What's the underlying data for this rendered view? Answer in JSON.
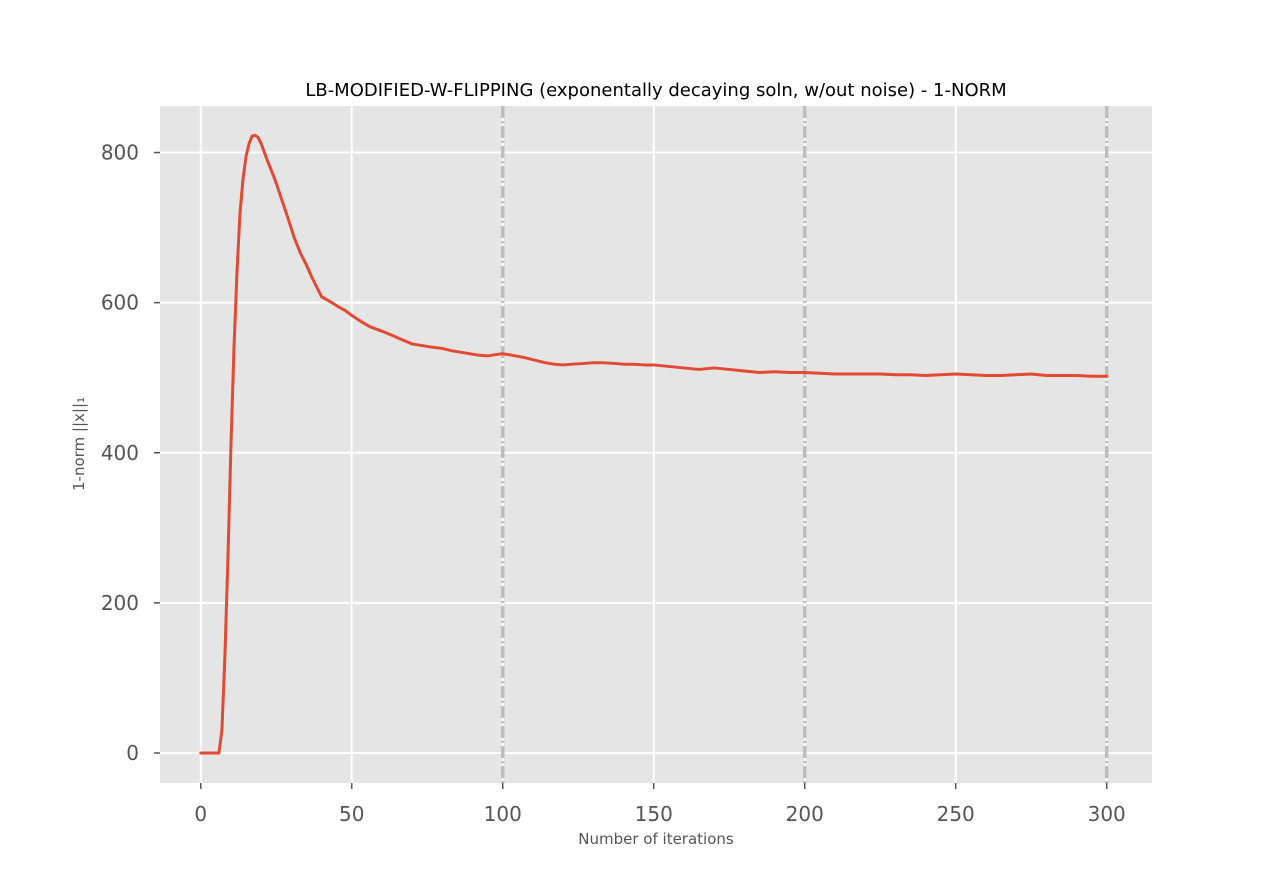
{
  "chart_data": {
    "type": "line",
    "title": "LB-MODIFIED-W-FLIPPING (exponentally decaying soln, w/out noise) - 1-NORM",
    "xlabel": "Number of iterations",
    "ylabel": "1-norm ||x||₁",
    "xlim": [
      -13.5,
      315
    ],
    "ylim": [
      -40,
      862
    ],
    "xticks": [
      0,
      50,
      100,
      150,
      200,
      250,
      300
    ],
    "yticks": [
      0,
      200,
      400,
      600,
      800
    ],
    "vlines": [
      100,
      200,
      300
    ],
    "grid": true,
    "style": "ggplot",
    "colors": {
      "line": "#E24A33",
      "background": "#E5E5E5",
      "grid": "#FFFFFF",
      "vline": "#BDBDBD",
      "tick": "#555555"
    },
    "series": [
      {
        "x": [
          0,
          1,
          2,
          3,
          4,
          5,
          6,
          7,
          8,
          9,
          10,
          11,
          12,
          13,
          14,
          15,
          16,
          17,
          18,
          19,
          20,
          21,
          22,
          23,
          24,
          25,
          27,
          29,
          31,
          33,
          35,
          37,
          40,
          43,
          45,
          48,
          50,
          53,
          56,
          60,
          63,
          67,
          70,
          73,
          76,
          80,
          83,
          86,
          89,
          92,
          95,
          98,
          100,
          103,
          107,
          110,
          114,
          117,
          120,
          123,
          127,
          130,
          133,
          137,
          140,
          143,
          147,
          150,
          155,
          160,
          165,
          170,
          175,
          180,
          185,
          190,
          195,
          200,
          205,
          210,
          215,
          220,
          225,
          230,
          235,
          240,
          245,
          250,
          255,
          260,
          265,
          270,
          275,
          280,
          285,
          290,
          295,
          300
        ],
        "y": [
          0,
          0,
          0,
          0,
          0,
          0,
          0,
          30,
          130,
          260,
          410,
          540,
          640,
          720,
          765,
          795,
          812,
          822,
          823,
          820,
          812,
          801,
          790,
          780,
          770,
          759,
          735,
          711,
          686,
          666,
          650,
          632,
          608,
          601,
          596,
          589,
          583,
          575,
          568,
          562,
          557,
          550,
          545,
          543,
          541,
          539,
          536,
          534,
          532,
          530,
          529,
          531,
          532,
          530,
          527,
          524,
          520,
          518,
          517,
          518,
          519,
          520,
          520,
          519,
          518,
          518,
          517,
          517,
          515,
          513,
          511,
          513,
          511,
          509,
          507,
          508,
          507,
          507,
          506,
          505,
          505,
          505,
          505,
          504,
          504,
          503,
          504,
          505,
          504,
          503,
          503,
          504,
          505,
          503,
          503,
          503,
          502,
          502
        ]
      }
    ]
  }
}
